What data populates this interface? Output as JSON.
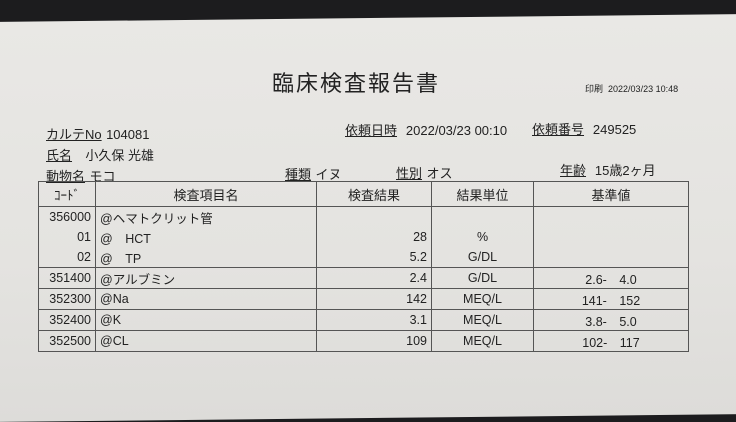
{
  "print": {
    "label": "印刷",
    "value": "2022/03/23 10:48"
  },
  "title": "臨床検査報告書",
  "header": {
    "chart_no": {
      "label": "カルテNo",
      "value": "104081"
    },
    "request_datetime": {
      "label": "依頼日時",
      "value": "2022/03/23 00:10"
    },
    "request_no": {
      "label": "依頼番号",
      "value": "249525"
    },
    "owner": {
      "label": "氏名",
      "value": "小久保 光雄"
    },
    "animal": {
      "label": "動物名",
      "value": "モコ"
    },
    "species": {
      "label": "種類",
      "value": "イヌ"
    },
    "sex": {
      "label": "性別",
      "value": "オス"
    },
    "age": {
      "label": "年齢",
      "value": "15歳2ヶ月"
    }
  },
  "table": {
    "columns": [
      "ｺｰﾄﾞ",
      "検査項目名",
      "検査結果",
      "結果単位",
      "基準値"
    ],
    "rows": [
      {
        "code": "356000",
        "name": "@ヘマトクリット管",
        "result": "",
        "unit": "",
        "ref": "",
        "sep": true
      },
      {
        "code": "01",
        "name": "@　HCT",
        "result": "28",
        "unit": "%",
        "ref": "",
        "sep": false
      },
      {
        "code": "02",
        "name": "@　TP",
        "result": "5.2",
        "unit": "G/DL",
        "ref": "",
        "sep": false
      },
      {
        "code": "351400",
        "name": "@アルブミン",
        "result": "2.4",
        "unit": "G/DL",
        "ref": "2.6-　4.0",
        "sep": true
      },
      {
        "code": "352300",
        "name": "@Na",
        "result": "142",
        "unit": "MEQ/L",
        "ref": "141-　152",
        "sep": true
      },
      {
        "code": "352400",
        "name": "@K",
        "result": "3.1",
        "unit": "MEQ/L",
        "ref": "3.8-　5.0",
        "sep": true
      },
      {
        "code": "352500",
        "name": "@CL",
        "result": "109",
        "unit": "MEQ/L",
        "ref": "102-　117",
        "sep": true
      }
    ]
  }
}
